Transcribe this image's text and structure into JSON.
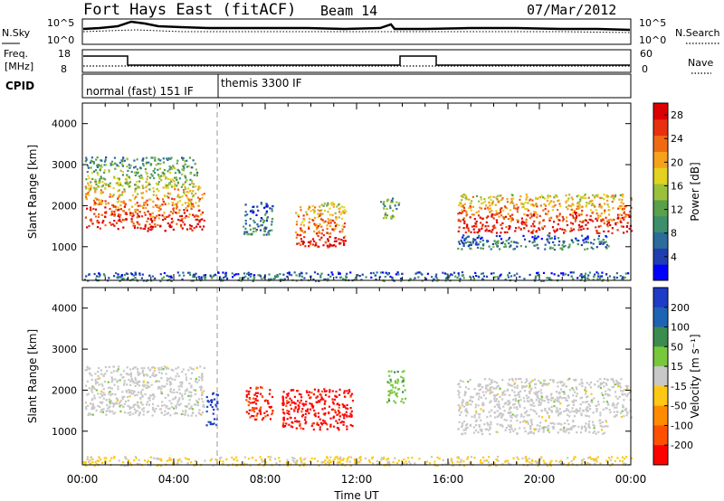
{
  "header": {
    "station": "Fort Hays East (fitACF)",
    "beam": "Beam 14",
    "date": "07/Mar/2012"
  },
  "status_panel": {
    "nsky_label": "N.Sky",
    "nsearch_label": "N.Search",
    "noise_ticks": [
      "10^5",
      "10^0"
    ],
    "freq_label_1": "Freq.",
    "freq_label_2": "[MHz]",
    "freq_ticks": [
      "18",
      "8"
    ],
    "nave_label": "Nave",
    "nave_ticks": [
      "60",
      "0"
    ],
    "cpid_label": "CPID",
    "cpid_segments": [
      "normal (fast) 151 IF",
      "themis 3300 IF"
    ]
  },
  "chart_data": [
    {
      "type": "heatmap",
      "title": "",
      "xlabel": "Time UT",
      "ylabel": "Slant Range [km]",
      "x_ticks": [
        "00:00",
        "04:00",
        "08:00",
        "12:00",
        "16:00",
        "20:00",
        "00:00"
      ],
      "x_range_hours": [
        0,
        24
      ],
      "y_ticks": [
        1000,
        2000,
        3000,
        4000
      ],
      "ylim": [
        180,
        4500
      ],
      "colorbar": {
        "label": "Power [dB]",
        "ticks": [
          "4",
          "8",
          "12",
          "16",
          "20",
          "24",
          "28"
        ],
        "range": [
          0,
          30
        ],
        "colors": [
          "#0000ff",
          "#1f3fb0",
          "#2d6b9a",
          "#3c8f6a",
          "#5aa04a",
          "#9bc13a",
          "#e3d21f",
          "#f5a21a",
          "#f06a14",
          "#e83010",
          "#dd0000"
        ]
      },
      "echo_regions": [
        {
          "t_start": 0.1,
          "t_end": 1.9,
          "range_low": 1450,
          "range_high": 2600,
          "level": "high"
        },
        {
          "t_start": 2.0,
          "t_end": 5.3,
          "range_low": 1400,
          "range_high": 2500,
          "level": "high"
        },
        {
          "t_start": 0.1,
          "t_end": 5.0,
          "range_low": 2500,
          "range_high": 3200,
          "level": "medium"
        },
        {
          "t_start": 7.0,
          "t_end": 8.3,
          "range_low": 1300,
          "range_high": 2100,
          "level": "low"
        },
        {
          "t_start": 9.3,
          "t_end": 11.5,
          "range_low": 1000,
          "range_high": 2100,
          "level": "high"
        },
        {
          "t_start": 13.0,
          "t_end": 13.9,
          "range_low": 1700,
          "range_high": 2200,
          "level": "medium"
        },
        {
          "t_start": 16.4,
          "t_end": 24.0,
          "range_low": 1350,
          "range_high": 2300,
          "level": "high"
        },
        {
          "t_start": 16.4,
          "t_end": 23.0,
          "range_low": 950,
          "range_high": 1300,
          "level": "low"
        },
        {
          "t_start": 0.0,
          "t_end": 24.0,
          "range_low": 180,
          "range_high": 400,
          "level": "low"
        }
      ]
    },
    {
      "type": "heatmap",
      "title": "",
      "xlabel": "Time UT",
      "ylabel": "Slant Range [km]",
      "x_ticks": [
        "00:00",
        "04:00",
        "08:00",
        "12:00",
        "16:00",
        "20:00",
        "00:00"
      ],
      "x_range_hours": [
        0,
        24
      ],
      "y_ticks": [
        1000,
        2000,
        3000,
        4000
      ],
      "ylim": [
        180,
        4500
      ],
      "colorbar": {
        "label": "Velocity [m s⁻¹]",
        "ticks": [
          "200",
          "100",
          "50",
          "15",
          "-15",
          "-50",
          "-100",
          "-200"
        ],
        "range": [
          -250,
          250
        ],
        "colors": [
          "#1e3cc8",
          "#1e64b4",
          "#3c8c50",
          "#78c83c",
          "#c8c8c8",
          "#ffc814",
          "#ff8c00",
          "#ff5000",
          "#ff0000"
        ]
      },
      "echo_regions": [
        {
          "t_start": 0.1,
          "t_end": 5.3,
          "range_low": 1400,
          "range_high": 2600,
          "velocity": 0
        },
        {
          "t_start": 5.4,
          "t_end": 5.9,
          "range_low": 1150,
          "range_high": 1950,
          "velocity": 220
        },
        {
          "t_start": 7.1,
          "t_end": 8.3,
          "range_low": 1300,
          "range_high": 2100,
          "velocity": -200
        },
        {
          "t_start": 8.7,
          "t_end": 11.8,
          "range_low": 1050,
          "range_high": 2050,
          "velocity": -220
        },
        {
          "t_start": 13.3,
          "t_end": 14.1,
          "range_low": 1700,
          "range_high": 2500,
          "velocity": 60
        },
        {
          "t_start": 16.4,
          "t_end": 24.0,
          "range_low": 1350,
          "range_high": 2300,
          "velocity": 0
        },
        {
          "t_start": 16.4,
          "t_end": 23.0,
          "range_low": 950,
          "range_high": 1300,
          "velocity": 0
        },
        {
          "t_start": 0.0,
          "t_end": 24.0,
          "range_low": 180,
          "range_high": 400,
          "velocity": -40
        }
      ]
    }
  ]
}
